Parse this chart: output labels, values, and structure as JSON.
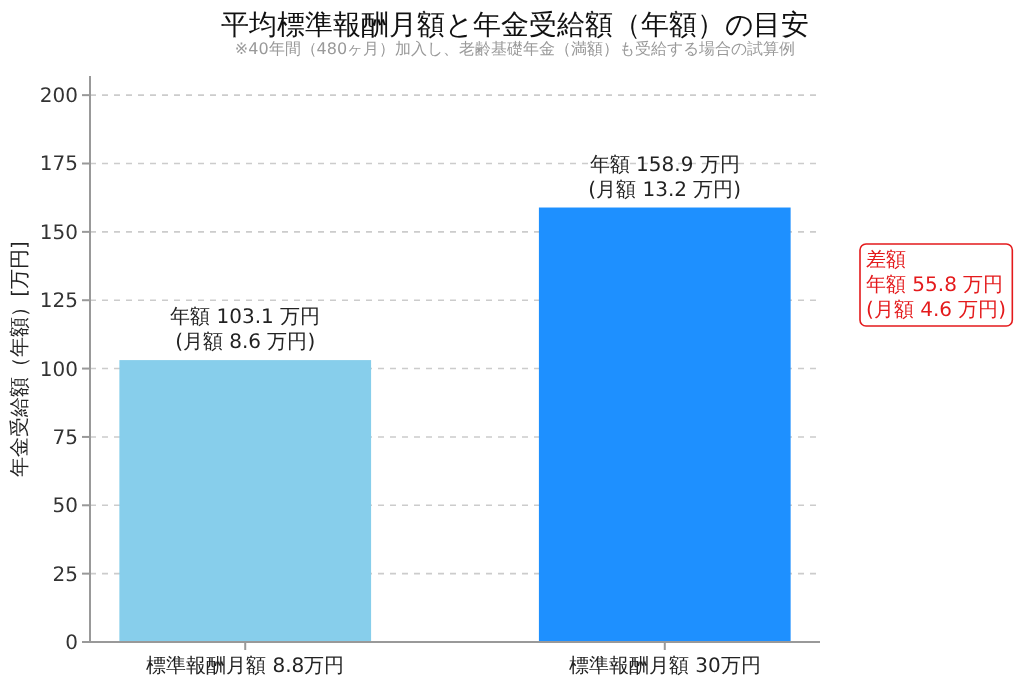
{
  "chart_data": {
    "type": "bar",
    "title": "平均標準報酬月額と年金受給額（年額）の目安",
    "subtitle": "※40年間（480ヶ月）加入し、老齢基礎年金（満額）も受給する場合の試算例",
    "ylabel": "年金受給額（年額）[万円]",
    "categories": [
      "標準報酬月額 8.8万円",
      "標準報酬月額 30万円"
    ],
    "values": [
      103.1,
      158.9
    ],
    "colors": [
      "#87ceeb",
      "#1e90ff"
    ],
    "value_labels": [
      "年額 103.1 万円\n(月額 8.6 万円)",
      "年額 158.9 万円\n(月額 13.2 万円)"
    ],
    "ylim": [
      0,
      207
    ],
    "yticks": [
      0,
      25,
      50,
      75,
      100,
      125,
      150,
      175,
      200
    ],
    "grid": "y",
    "annotations": [
      "差額",
      "年額 55.8 万円",
      "(月額 4.6 万円)"
    ]
  }
}
